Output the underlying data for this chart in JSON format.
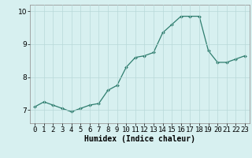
{
  "x": [
    0,
    1,
    2,
    3,
    4,
    5,
    6,
    7,
    8,
    9,
    10,
    11,
    12,
    13,
    14,
    15,
    16,
    17,
    18,
    19,
    20,
    21,
    22,
    23
  ],
  "y": [
    7.1,
    7.25,
    7.15,
    7.05,
    6.95,
    7.05,
    7.15,
    7.2,
    7.6,
    7.75,
    8.3,
    8.6,
    8.65,
    8.75,
    9.35,
    9.6,
    9.85,
    9.85,
    9.85,
    8.8,
    8.45,
    8.45,
    8.55,
    8.65
  ],
  "line_color": "#2e7d6e",
  "marker": "D",
  "marker_size": 2.0,
  "bg_color": "#d7f0f0",
  "grid_color": "#b8d8d8",
  "xlabel": "Humidex (Indice chaleur)",
  "xlabel_fontsize": 7,
  "tick_fontsize": 6.5,
  "ylim": [
    6.6,
    10.2
  ],
  "xlim": [
    -0.5,
    23.5
  ],
  "yticks": [
    7,
    8,
    9,
    10
  ],
  "xtick_labels": [
    "0",
    "1",
    "2",
    "3",
    "4",
    "5",
    "6",
    "7",
    "8",
    "9",
    "10",
    "11",
    "12",
    "13",
    "14",
    "15",
    "16",
    "17",
    "18",
    "19",
    "20",
    "21",
    "22",
    "23"
  ]
}
